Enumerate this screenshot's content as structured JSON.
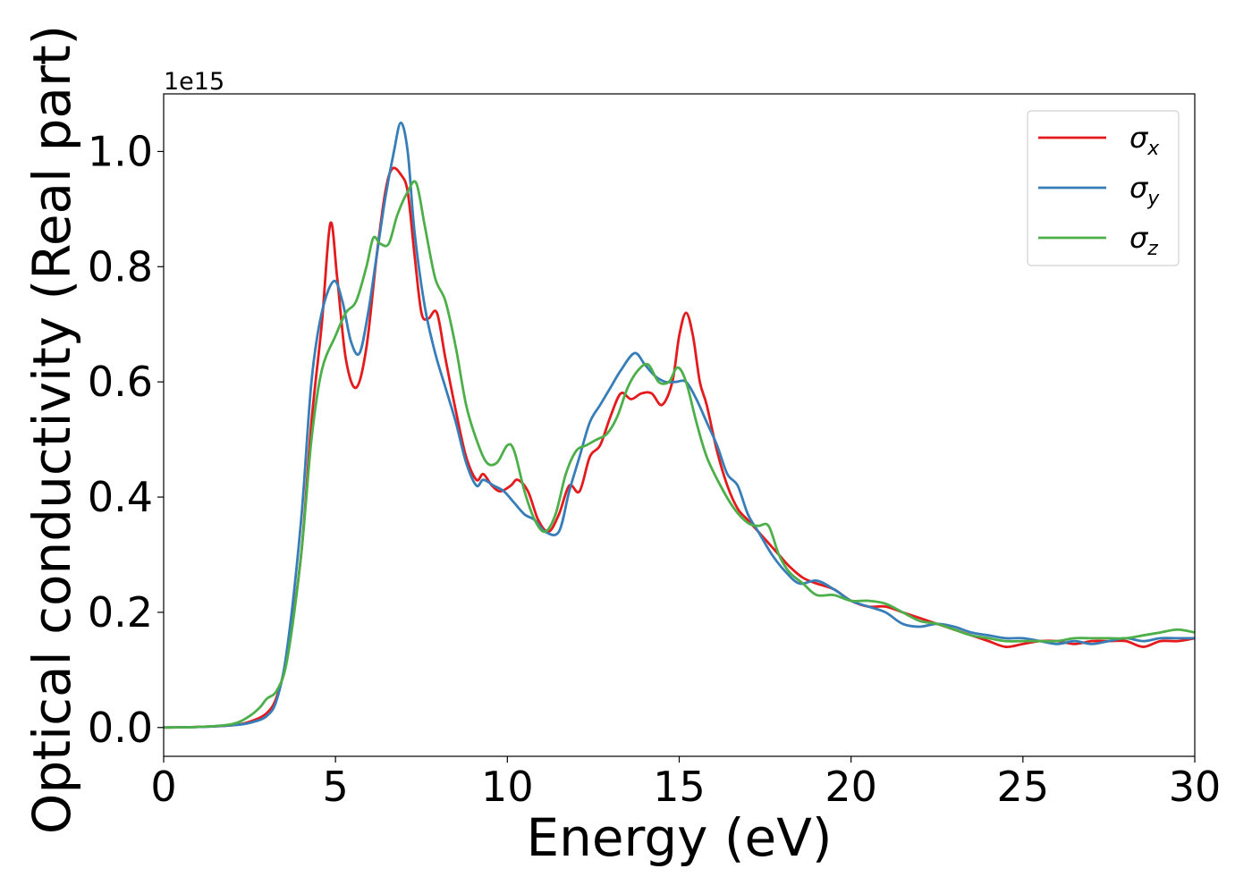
{
  "chart_data": {
    "type": "line",
    "xlabel": "Energy (eV)",
    "ylabel": "Optical conductivity (Real part)",
    "y_offset_label": "1e15",
    "xlim": [
      0,
      30
    ],
    "ylim": [
      -0.05,
      1.1
    ],
    "x_ticks": [
      0,
      5,
      10,
      15,
      20,
      25,
      30
    ],
    "y_ticks": [
      0.0,
      0.2,
      0.4,
      0.6,
      0.8,
      1.0
    ],
    "x_tick_labels": [
      "0",
      "5",
      "10",
      "15",
      "20",
      "25",
      "30"
    ],
    "y_tick_labels": [
      "0.0",
      "0.2",
      "0.4",
      "0.6",
      "0.8",
      "1.0"
    ],
    "grid": false,
    "legend_position": "upper right",
    "series": [
      {
        "name": "σx",
        "symbol": "σ",
        "subscript": "x",
        "color": "#e41a1c",
        "x": [
          0,
          1,
          2,
          2.5,
          3,
          3.3,
          3.6,
          4.0,
          4.3,
          4.6,
          4.85,
          5.05,
          5.3,
          5.6,
          5.9,
          6.2,
          6.45,
          6.65,
          6.9,
          7.1,
          7.3,
          7.5,
          7.7,
          7.95,
          8.2,
          8.5,
          8.8,
          9.1,
          9.3,
          9.55,
          9.8,
          10.1,
          10.3,
          10.6,
          10.9,
          11.2,
          11.5,
          11.8,
          12.1,
          12.4,
          12.7,
          13.0,
          13.3,
          13.6,
          13.9,
          14.2,
          14.5,
          14.8,
          15.0,
          15.2,
          15.4,
          15.6,
          15.8,
          16.1,
          16.4,
          16.7,
          17.0,
          17.3,
          17.6,
          17.9,
          18.2,
          18.6,
          19.0,
          19.5,
          20.0,
          20.5,
          21.0,
          21.5,
          22.0,
          22.5,
          23.0,
          23.5,
          24.0,
          24.5,
          25.0,
          25.5,
          26.0,
          26.5,
          27.0,
          27.5,
          28.0,
          28.5,
          29.0,
          29.5,
          30.0
        ],
        "y": [
          0.0,
          0.001,
          0.004,
          0.01,
          0.025,
          0.055,
          0.13,
          0.3,
          0.53,
          0.7,
          0.875,
          0.78,
          0.64,
          0.59,
          0.66,
          0.82,
          0.93,
          0.97,
          0.96,
          0.93,
          0.82,
          0.72,
          0.71,
          0.72,
          0.64,
          0.55,
          0.47,
          0.43,
          0.44,
          0.42,
          0.41,
          0.42,
          0.43,
          0.41,
          0.36,
          0.34,
          0.37,
          0.42,
          0.41,
          0.47,
          0.49,
          0.54,
          0.58,
          0.57,
          0.58,
          0.58,
          0.56,
          0.6,
          0.68,
          0.72,
          0.68,
          0.6,
          0.56,
          0.48,
          0.42,
          0.38,
          0.36,
          0.34,
          0.32,
          0.3,
          0.28,
          0.26,
          0.25,
          0.24,
          0.22,
          0.21,
          0.21,
          0.2,
          0.19,
          0.18,
          0.17,
          0.16,
          0.15,
          0.14,
          0.145,
          0.15,
          0.15,
          0.145,
          0.15,
          0.15,
          0.15,
          0.14,
          0.15,
          0.15,
          0.155
        ]
      },
      {
        "name": "σy",
        "symbol": "σ",
        "subscript": "y",
        "color": "#377eb8",
        "x": [
          0,
          1,
          2,
          2.5,
          3,
          3.3,
          3.6,
          4.0,
          4.3,
          4.6,
          4.95,
          5.2,
          5.45,
          5.7,
          5.95,
          6.2,
          6.45,
          6.7,
          6.9,
          7.1,
          7.3,
          7.6,
          7.9,
          8.2,
          8.5,
          8.8,
          9.1,
          9.3,
          9.6,
          9.9,
          10.2,
          10.5,
          10.8,
          11.1,
          11.5,
          11.8,
          12.1,
          12.4,
          12.7,
          13.0,
          13.3,
          13.7,
          14.0,
          14.3,
          14.6,
          14.9,
          15.2,
          15.5,
          15.8,
          16.1,
          16.4,
          16.7,
          17.0,
          17.3,
          17.7,
          18.1,
          18.5,
          19.0,
          19.5,
          20.0,
          20.5,
          21.0,
          21.5,
          22.0,
          22.5,
          23.0,
          23.5,
          24.0,
          24.5,
          25.0,
          25.5,
          26.0,
          26.5,
          27.0,
          27.5,
          28.0,
          28.5,
          29.0,
          29.5,
          30.0
        ],
        "y": [
          0.0,
          0.001,
          0.004,
          0.008,
          0.02,
          0.05,
          0.14,
          0.36,
          0.6,
          0.72,
          0.775,
          0.74,
          0.67,
          0.65,
          0.72,
          0.82,
          0.92,
          1.0,
          1.05,
          1.0,
          0.86,
          0.73,
          0.65,
          0.59,
          0.53,
          0.46,
          0.42,
          0.43,
          0.42,
          0.41,
          0.39,
          0.37,
          0.36,
          0.34,
          0.34,
          0.41,
          0.47,
          0.53,
          0.56,
          0.59,
          0.62,
          0.65,
          0.63,
          0.61,
          0.6,
          0.6,
          0.6,
          0.57,
          0.53,
          0.49,
          0.44,
          0.42,
          0.37,
          0.34,
          0.3,
          0.27,
          0.25,
          0.255,
          0.24,
          0.22,
          0.21,
          0.2,
          0.18,
          0.175,
          0.18,
          0.175,
          0.165,
          0.16,
          0.155,
          0.155,
          0.15,
          0.145,
          0.15,
          0.145,
          0.15,
          0.155,
          0.15,
          0.155,
          0.155,
          0.155
        ]
      },
      {
        "name": "σz",
        "symbol": "σ",
        "subscript": "z",
        "color": "#4daf4a",
        "x": [
          0,
          1,
          2,
          2.5,
          2.8,
          3.0,
          3.3,
          3.6,
          4.0,
          4.3,
          4.6,
          5.0,
          5.3,
          5.6,
          5.9,
          6.1,
          6.3,
          6.55,
          6.8,
          7.1,
          7.35,
          7.6,
          7.9,
          8.2,
          8.5,
          8.8,
          9.1,
          9.4,
          9.7,
          10.0,
          10.2,
          10.5,
          10.8,
          11.1,
          11.4,
          11.7,
          12.0,
          12.3,
          12.6,
          12.9,
          13.2,
          13.5,
          13.8,
          14.1,
          14.4,
          14.7,
          14.95,
          15.2,
          15.5,
          15.8,
          16.2,
          16.6,
          17.0,
          17.3,
          17.6,
          17.9,
          18.2,
          18.6,
          19.0,
          19.5,
          20.0,
          20.5,
          21.0,
          21.5,
          22.0,
          22.5,
          23.0,
          23.5,
          24.0,
          24.5,
          25.0,
          25.5,
          26.0,
          26.5,
          27.0,
          27.5,
          28.0,
          28.5,
          29.0,
          29.5,
          30.0
        ],
        "y": [
          0.0,
          0.001,
          0.006,
          0.02,
          0.035,
          0.05,
          0.065,
          0.12,
          0.3,
          0.5,
          0.62,
          0.68,
          0.72,
          0.74,
          0.8,
          0.85,
          0.84,
          0.84,
          0.89,
          0.93,
          0.945,
          0.87,
          0.78,
          0.74,
          0.66,
          0.56,
          0.5,
          0.46,
          0.46,
          0.49,
          0.48,
          0.41,
          0.36,
          0.34,
          0.37,
          0.44,
          0.48,
          0.49,
          0.5,
          0.51,
          0.54,
          0.59,
          0.62,
          0.63,
          0.6,
          0.6,
          0.625,
          0.6,
          0.53,
          0.47,
          0.42,
          0.38,
          0.355,
          0.35,
          0.35,
          0.3,
          0.27,
          0.25,
          0.23,
          0.23,
          0.22,
          0.22,
          0.215,
          0.2,
          0.185,
          0.18,
          0.17,
          0.16,
          0.155,
          0.15,
          0.15,
          0.15,
          0.15,
          0.155,
          0.155,
          0.155,
          0.155,
          0.16,
          0.165,
          0.17,
          0.165
        ]
      }
    ]
  }
}
